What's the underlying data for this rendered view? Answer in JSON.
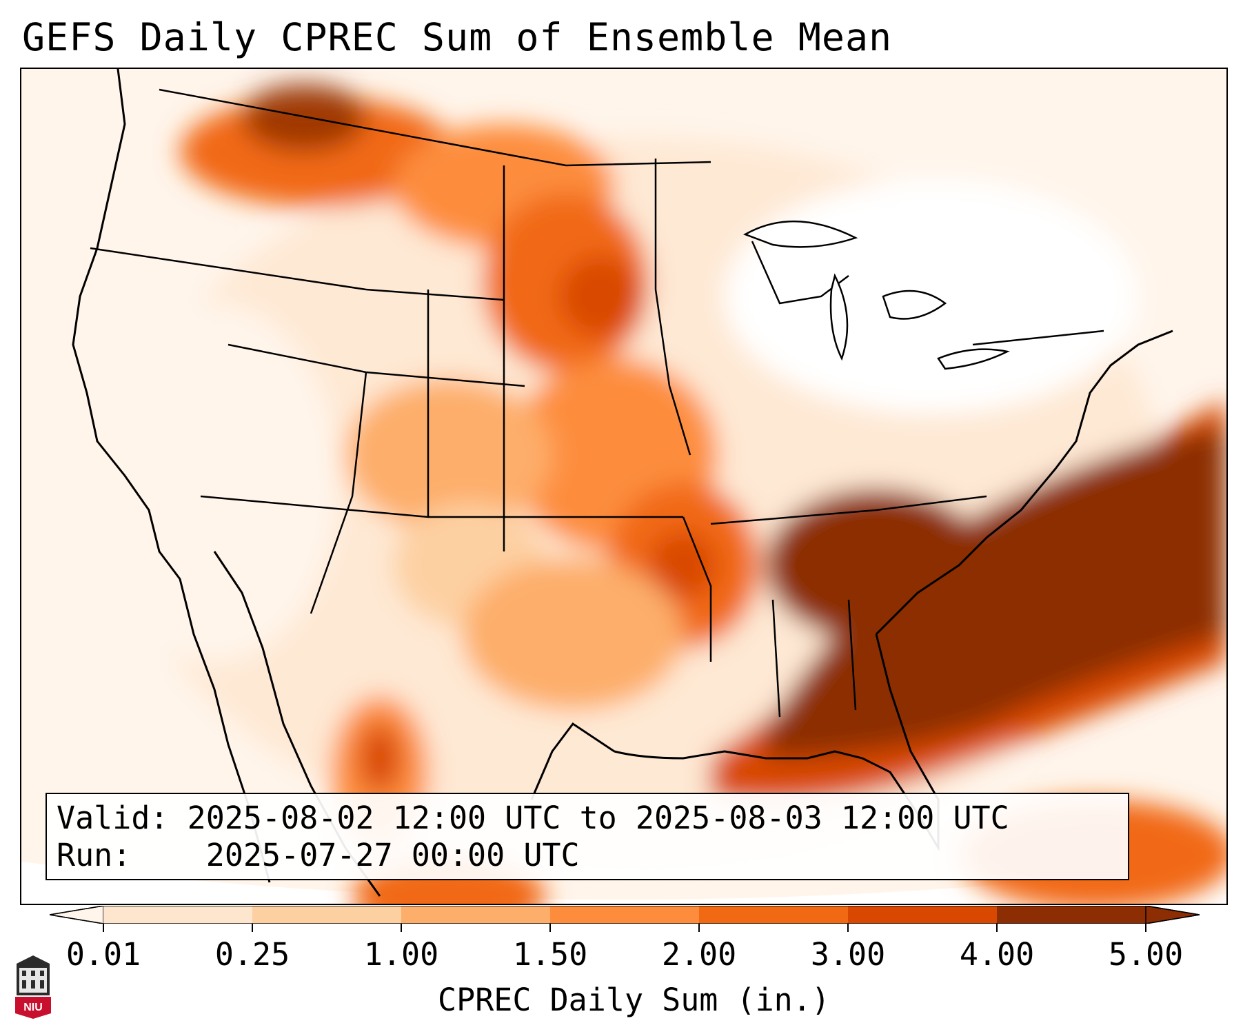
{
  "title": "GEFS Daily CPREC Sum of Ensemble Mean",
  "info": {
    "valid_label": "Valid:",
    "valid_value": "2025-08-02 12:00 UTC to 2025-08-03 12:00 UTC",
    "run_label": "Run:",
    "run_value": "2025-07-27 00:00 UTC"
  },
  "colorbar": {
    "label": "CPREC Daily Sum (in.)",
    "ticks": [
      "0.01",
      "0.25",
      "1.00",
      "1.50",
      "2.00",
      "3.00",
      "4.00",
      "5.00"
    ],
    "colors": [
      "#fff5eb",
      "#fee6ce",
      "#fdd0a2",
      "#fdae6b",
      "#fd8d3c",
      "#f16913",
      "#d94801",
      "#8c2d04"
    ],
    "extend": "both"
  },
  "logo": {
    "text": "NIU",
    "color": "#c8102e"
  }
}
